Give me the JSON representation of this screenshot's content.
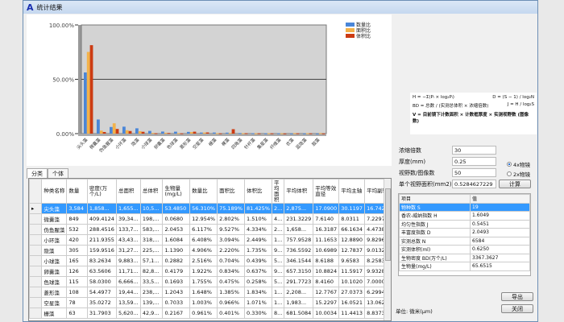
{
  "window": {
    "title": "统计结果"
  },
  "chart_data": {
    "type": "bar",
    "categories": [
      "尖头藻",
      "微囊藻",
      "伪鱼腥藻",
      "小环藻",
      "隐藻",
      "小球藻",
      "卵囊藻",
      "色球藻",
      "菱形藻",
      "空星藻",
      "栅藻",
      "裸藻",
      "四角藻",
      "针杆藻",
      "集星藻",
      "纤维藻",
      "衣藻",
      "蓝隐藻",
      "鼓藻"
    ],
    "series": [
      {
        "name": "数量比",
        "color": "#4a86d8",
        "values": [
          56.3,
          13.0,
          6.1,
          6.4,
          4.9,
          2.5,
          1.9,
          1.8,
          1.6,
          1.0,
          1.0,
          0.9,
          0.5,
          0.4,
          0.3,
          0.3,
          0.2,
          0.2,
          0.1
        ]
      },
      {
        "name": "面积比",
        "color": "#f3b24a",
        "values": [
          75.2,
          2.8,
          9.5,
          3.1,
          2.2,
          0.7,
          0.8,
          0.5,
          1.4,
          1.0,
          0.4,
          0.6,
          0.4,
          0.3,
          0.4,
          0.3,
          0.5,
          0.4,
          0.5
        ]
      },
      {
        "name": "体积比",
        "color": "#cc3b12",
        "values": [
          81.4,
          1.5,
          4.3,
          2.4,
          1.7,
          0.4,
          0.6,
          0.3,
          1.8,
          1.1,
          0.3,
          4.1,
          0.4,
          0.3,
          0.3,
          0.2,
          0.3,
          0.3,
          0.2
        ]
      }
    ],
    "yticks": [
      "0.00%",
      "50.00%",
      "100.00%"
    ],
    "ylim": [
      0,
      100
    ],
    "legend": "top-right"
  },
  "tabs": [
    "分类",
    "个体"
  ],
  "table": {
    "headers": [
      "种类名称",
      "数量",
      "密度(万个/L)",
      "总面积",
      "总体积",
      "生物量(mg/L)",
      "数量比",
      "面积比",
      "体积比",
      "平均面积",
      "平均体积",
      "平均等效直径",
      "平均主轴",
      "平均副轴"
    ],
    "rows": [
      [
        "尖头藻",
        "3,584",
        "1,858...",
        "1,655...",
        "10,5...",
        "53.4850",
        "56.310%",
        "75.189%",
        "81.425%",
        "2...",
        "2,875...",
        "17.0900",
        "30.1197",
        "16.7425"
      ],
      [
        "微囊藻",
        "849",
        "409.4124",
        "39,34...",
        "198,...",
        "0.0680",
        "12.954%",
        "2.802%",
        "1.510%",
        "4...",
        "231.3229",
        "7.6140",
        "8.0311",
        "7.2297"
      ],
      [
        "伪鱼腥藻",
        "532",
        "288.4516",
        "133,7...",
        "583,...",
        "2.0453",
        "6.117%",
        "9.527%",
        "4.334%",
        "2...",
        "1,658...",
        "16.3187",
        "66.1634",
        "4.4738"
      ],
      [
        "小环藻",
        "420",
        "211.9355",
        "43,43...",
        "318,...",
        "1.6084",
        "6.408%",
        "3.094%",
        "2.449%",
        "1...",
        "757.9528",
        "11.1653",
        "12.8890",
        "9.8296"
      ],
      [
        "隐藻",
        "305",
        "159.9516",
        "31,27...",
        "225,...",
        "1.1390",
        "4.906%",
        "2.220%",
        "1.735%",
        "9...",
        "736.5592",
        "10.6989",
        "12.7837",
        "9.0132"
      ],
      [
        "小球藻",
        "165",
        "83.2634",
        "9,883...",
        "57,1...",
        "0.2882",
        "2.516%",
        "0.704%",
        "0.439%",
        "5...",
        "346.1544",
        "8.6188",
        "9.6583",
        "8.2583"
      ],
      [
        "卵囊藻",
        "126",
        "63.5606",
        "11,71...",
        "82,8...",
        "0.4179",
        "1.922%",
        "0.834%",
        "0.637%",
        "9...",
        "657.3150",
        "10.8824",
        "11.5917",
        "9.9328"
      ],
      [
        "色球藻",
        "115",
        "58.0300",
        "6,666...",
        "33,5...",
        "0.1693",
        "1.755%",
        "0.475%",
        "0.258%",
        "5...",
        "291.7723",
        "8.4160",
        "10.1020",
        "7.0000"
      ],
      [
        "菱形藻",
        "108",
        "54.4977",
        "19,44...",
        "238,...",
        "1.2043",
        "1.648%",
        "1.385%",
        "1.834%",
        "1...",
        "2,208...",
        "12.7767",
        "27.0373",
        "6.2994"
      ],
      [
        "空星藻",
        "78",
        "35.0272",
        "13,59...",
        "139,...",
        "0.7033",
        "1.003%",
        "0.966%",
        "1.071%",
        "1...",
        "1,983...",
        "15.2297",
        "16.0521",
        "13.0622"
      ],
      [
        "栅藻",
        "63",
        "31.7903",
        "5,620...",
        "42,9...",
        "0.2167",
        "0.961%",
        "0.401%",
        "0.330%",
        "8...",
        "681.5084",
        "10.0034",
        "11.4413",
        "8.8373"
      ]
    ]
  },
  "formulas": {
    "h": "H = −Σ(Pᵢ × log₂Pᵢ)",
    "d": "D = (S − 1) / log₂N",
    "bd": "BD = 总数 / (实测总体积 × 浓缩倍数)",
    "j": "J = H / log₂S",
    "v": "V = 目前镜下计数面积 × 计数框厚度 × 实测视野数 (图像数)"
  },
  "params": {
    "concentration_label": "浓缩倍数",
    "concentration": "30",
    "thickness_label": "厚度(mm)",
    "thickness": "0.25",
    "fields_label": "视野数/图像数",
    "fields": "50",
    "area_label": "单个视野面积(mm2)",
    "area": "0.5284627229",
    "radio1": "4x物镜",
    "radio2": "2x物镜",
    "calc": "计算"
  },
  "results": {
    "headers": [
      "项目",
      "值"
    ],
    "rows": [
      [
        "物种数 S",
        "19"
      ],
      [
        "香农-威纳指数 H",
        "1.6049"
      ],
      [
        "均匀性指数 J",
        "0.5451"
      ],
      [
        "丰富度指数 D",
        "2.0493"
      ],
      [
        "实测总数 N",
        "6584"
      ],
      [
        "实测体积(ml)",
        "0.6250"
      ],
      [
        "生物密度 BD(万个/L)",
        "3367.3627"
      ],
      [
        "生物量(mg/L)",
        "65.6515"
      ]
    ]
  },
  "footer": {
    "unit": "单位: 微米(μm)",
    "export": "导出",
    "close": "关闭"
  }
}
